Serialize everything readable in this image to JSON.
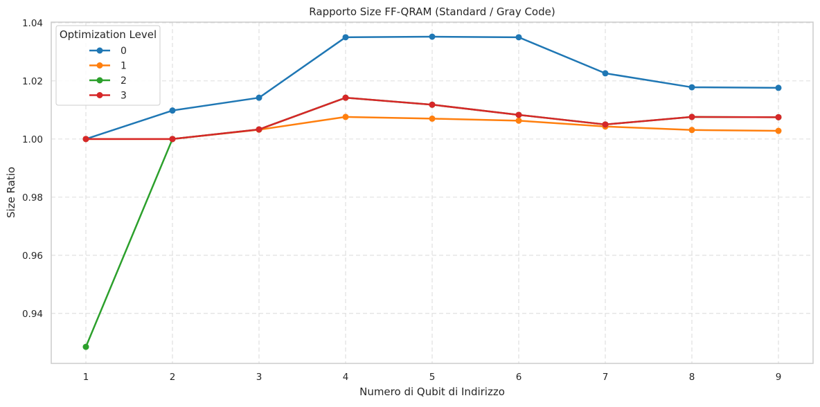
{
  "chart_data": {
    "type": "line",
    "title": "Rapporto Size FF-QRAM (Standard / Gray Code)",
    "xlabel": "Numero di Qubit di Indirizzo",
    "ylabel": "Size Ratio",
    "x": [
      1,
      2,
      3,
      4,
      5,
      6,
      7,
      8,
      9
    ],
    "xlim": [
      0.6,
      9.4
    ],
    "ylim": [
      0.9228,
      1.0402
    ],
    "yticks": [
      0.94,
      0.96,
      0.98,
      1.0,
      1.02,
      1.04
    ],
    "ytick_labels": [
      "0.94",
      "0.96",
      "0.98",
      "1.00",
      "1.02",
      "1.04"
    ],
    "xtick_labels": [
      "1",
      "2",
      "3",
      "4",
      "5",
      "6",
      "7",
      "8",
      "9"
    ],
    "grid": true,
    "legend": {
      "title": "Optimization Level",
      "placement": "top-left"
    },
    "series": [
      {
        "name": "0",
        "color": "#1f77b4",
        "values": [
          1.0,
          1.0098,
          1.0142,
          1.035,
          1.0352,
          1.035,
          1.0226,
          1.0178,
          1.0176
        ]
      },
      {
        "name": "1",
        "color": "#ff7f0e",
        "values": [
          1.0,
          1.0,
          1.0032,
          1.0076,
          1.007,
          1.0063,
          1.0043,
          1.0031,
          1.0028
        ]
      },
      {
        "name": "2",
        "color": "#2ca02c",
        "values": [
          0.9285,
          1.0,
          1.0033,
          1.0142,
          1.0118,
          1.0083,
          1.005,
          1.0076,
          1.0075
        ]
      },
      {
        "name": "3",
        "color": "#d62728",
        "values": [
          1.0,
          1.0,
          1.0033,
          1.0142,
          1.0118,
          1.0083,
          1.005,
          1.0076,
          1.0075
        ]
      }
    ]
  }
}
